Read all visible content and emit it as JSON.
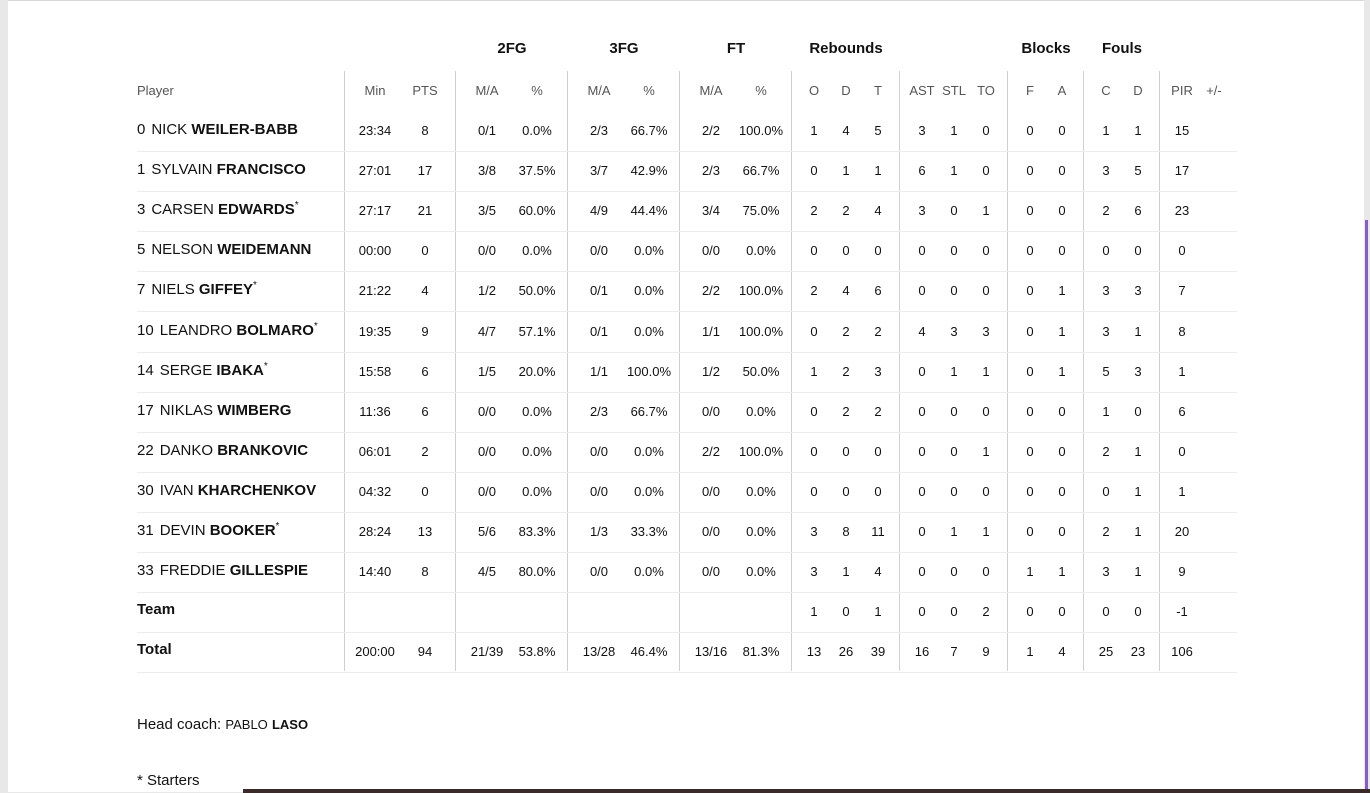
{
  "groups": [
    {
      "label": "2FG"
    },
    {
      "label": "3FG"
    },
    {
      "label": "FT"
    },
    {
      "label": "Rebounds"
    },
    {
      "label": "Blocks"
    },
    {
      "label": "Fouls"
    }
  ],
  "headers": {
    "player": "Player",
    "cols": [
      "Min",
      "PTS",
      "M/A",
      "%",
      "M/A",
      "%",
      "M/A",
      "%",
      "O",
      "D",
      "T",
      "AST",
      "STL",
      "TO",
      "F",
      "A",
      "C",
      "D",
      "PIR",
      "+/-"
    ]
  },
  "players": [
    {
      "num": "0",
      "first": "NICK",
      "last": "WEILER-BABB",
      "starter": false,
      "stats": [
        "23:34",
        "8",
        "0/1",
        "0.0%",
        "2/3",
        "66.7%",
        "2/2",
        "100.0%",
        "1",
        "4",
        "5",
        "3",
        "1",
        "0",
        "0",
        "0",
        "1",
        "1",
        "15",
        ""
      ]
    },
    {
      "num": "1",
      "first": "SYLVAIN",
      "last": "FRANCISCO",
      "starter": false,
      "stats": [
        "27:01",
        "17",
        "3/8",
        "37.5%",
        "3/7",
        "42.9%",
        "2/3",
        "66.7%",
        "0",
        "1",
        "1",
        "6",
        "1",
        "0",
        "0",
        "0",
        "3",
        "5",
        "17",
        ""
      ]
    },
    {
      "num": "3",
      "first": "CARSEN",
      "last": "EDWARDS",
      "starter": true,
      "stats": [
        "27:17",
        "21",
        "3/5",
        "60.0%",
        "4/9",
        "44.4%",
        "3/4",
        "75.0%",
        "2",
        "2",
        "4",
        "3",
        "0",
        "1",
        "0",
        "0",
        "2",
        "6",
        "23",
        ""
      ]
    },
    {
      "num": "5",
      "first": "NELSON",
      "last": "WEIDEMANN",
      "starter": false,
      "stats": [
        "00:00",
        "0",
        "0/0",
        "0.0%",
        "0/0",
        "0.0%",
        "0/0",
        "0.0%",
        "0",
        "0",
        "0",
        "0",
        "0",
        "0",
        "0",
        "0",
        "0",
        "0",
        "0",
        ""
      ]
    },
    {
      "num": "7",
      "first": "NIELS",
      "last": "GIFFEY",
      "starter": true,
      "stats": [
        "21:22",
        "4",
        "1/2",
        "50.0%",
        "0/1",
        "0.0%",
        "2/2",
        "100.0%",
        "2",
        "4",
        "6",
        "0",
        "0",
        "0",
        "0",
        "1",
        "3",
        "3",
        "7",
        ""
      ]
    },
    {
      "num": "10",
      "first": "LEANDRO",
      "last": "BOLMARO",
      "starter": true,
      "stats": [
        "19:35",
        "9",
        "4/7",
        "57.1%",
        "0/1",
        "0.0%",
        "1/1",
        "100.0%",
        "0",
        "2",
        "2",
        "4",
        "3",
        "3",
        "0",
        "1",
        "3",
        "1",
        "8",
        ""
      ]
    },
    {
      "num": "14",
      "first": "SERGE",
      "last": "IBAKA",
      "starter": true,
      "stats": [
        "15:58",
        "6",
        "1/5",
        "20.0%",
        "1/1",
        "100.0%",
        "1/2",
        "50.0%",
        "1",
        "2",
        "3",
        "0",
        "1",
        "1",
        "0",
        "1",
        "5",
        "3",
        "1",
        ""
      ]
    },
    {
      "num": "17",
      "first": "NIKLAS",
      "last": "WIMBERG",
      "starter": false,
      "stats": [
        "11:36",
        "6",
        "0/0",
        "0.0%",
        "2/3",
        "66.7%",
        "0/0",
        "0.0%",
        "0",
        "2",
        "2",
        "0",
        "0",
        "0",
        "0",
        "0",
        "1",
        "0",
        "6",
        ""
      ]
    },
    {
      "num": "22",
      "first": "DANKO",
      "last": "BRANKOVIC",
      "starter": false,
      "stats": [
        "06:01",
        "2",
        "0/0",
        "0.0%",
        "0/0",
        "0.0%",
        "2/2",
        "100.0%",
        "0",
        "0",
        "0",
        "0",
        "0",
        "1",
        "0",
        "0",
        "2",
        "1",
        "0",
        ""
      ]
    },
    {
      "num": "30",
      "first": "IVAN",
      "last": "KHARCHENKOV",
      "starter": false,
      "stats": [
        "04:32",
        "0",
        "0/0",
        "0.0%",
        "0/0",
        "0.0%",
        "0/0",
        "0.0%",
        "0",
        "0",
        "0",
        "0",
        "0",
        "0",
        "0",
        "0",
        "0",
        "1",
        "1",
        ""
      ]
    },
    {
      "num": "31",
      "first": "DEVIN",
      "last": "BOOKER",
      "starter": true,
      "stats": [
        "28:24",
        "13",
        "5/6",
        "83.3%",
        "1/3",
        "33.3%",
        "0/0",
        "0.0%",
        "3",
        "8",
        "11",
        "0",
        "1",
        "1",
        "0",
        "0",
        "2",
        "1",
        "20",
        ""
      ]
    },
    {
      "num": "33",
      "first": "FREDDIE",
      "last": "GILLESPIE",
      "starter": false,
      "stats": [
        "14:40",
        "8",
        "4/5",
        "80.0%",
        "0/0",
        "0.0%",
        "0/0",
        "0.0%",
        "3",
        "1",
        "4",
        "0",
        "0",
        "0",
        "1",
        "1",
        "3",
        "1",
        "9",
        ""
      ]
    }
  ],
  "team": {
    "label": "Team",
    "stats": [
      "",
      "",
      "",
      "",
      "",
      "",
      "",
      "",
      "1",
      "0",
      "1",
      "0",
      "0",
      "2",
      "0",
      "0",
      "0",
      "0",
      "-1",
      ""
    ]
  },
  "total": {
    "label": "Total",
    "stats": [
      "200:00",
      "94",
      "21/39",
      "53.8%",
      "13/28",
      "46.4%",
      "13/16",
      "81.3%",
      "13",
      "26",
      "39",
      "16",
      "7",
      "9",
      "1",
      "4",
      "25",
      "23",
      "106",
      ""
    ]
  },
  "coach": {
    "prefix": "Head coach: ",
    "first": "PABLO",
    "last": "LASO"
  },
  "starter_mark": "*",
  "note": "* Starters"
}
